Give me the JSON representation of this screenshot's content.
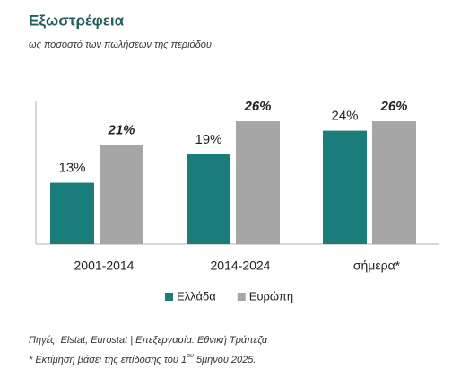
{
  "chart_data": {
    "type": "bar",
    "title": "Εξωστρέφεια",
    "subtitle": "ως ποσοστό των πωλήσεων της περιόδου",
    "categories": [
      "2001-2014",
      "2014-2024",
      "σήμερα*"
    ],
    "series": [
      {
        "name": "Ελλάδα",
        "color": "#1a7d7b",
        "values": [
          13,
          19,
          24
        ],
        "value_labels": [
          "13%",
          "19%",
          "24%"
        ]
      },
      {
        "name": "Ευρώπη",
        "color": "#a6a6a6",
        "values": [
          21,
          26,
          26
        ],
        "value_labels": [
          "21%",
          "26%",
          "26%"
        ]
      }
    ],
    "ylim": [
      0,
      30
    ],
    "notes": [
      "Πηγές: Elstat, Eurostat | Επεξεργασία: Εθνική Τράπεζα",
      [
        "* Εκτίμηση βάσει της επίδοσης του 1",
        "ου",
        " 5μηνου 2025."
      ]
    ]
  }
}
